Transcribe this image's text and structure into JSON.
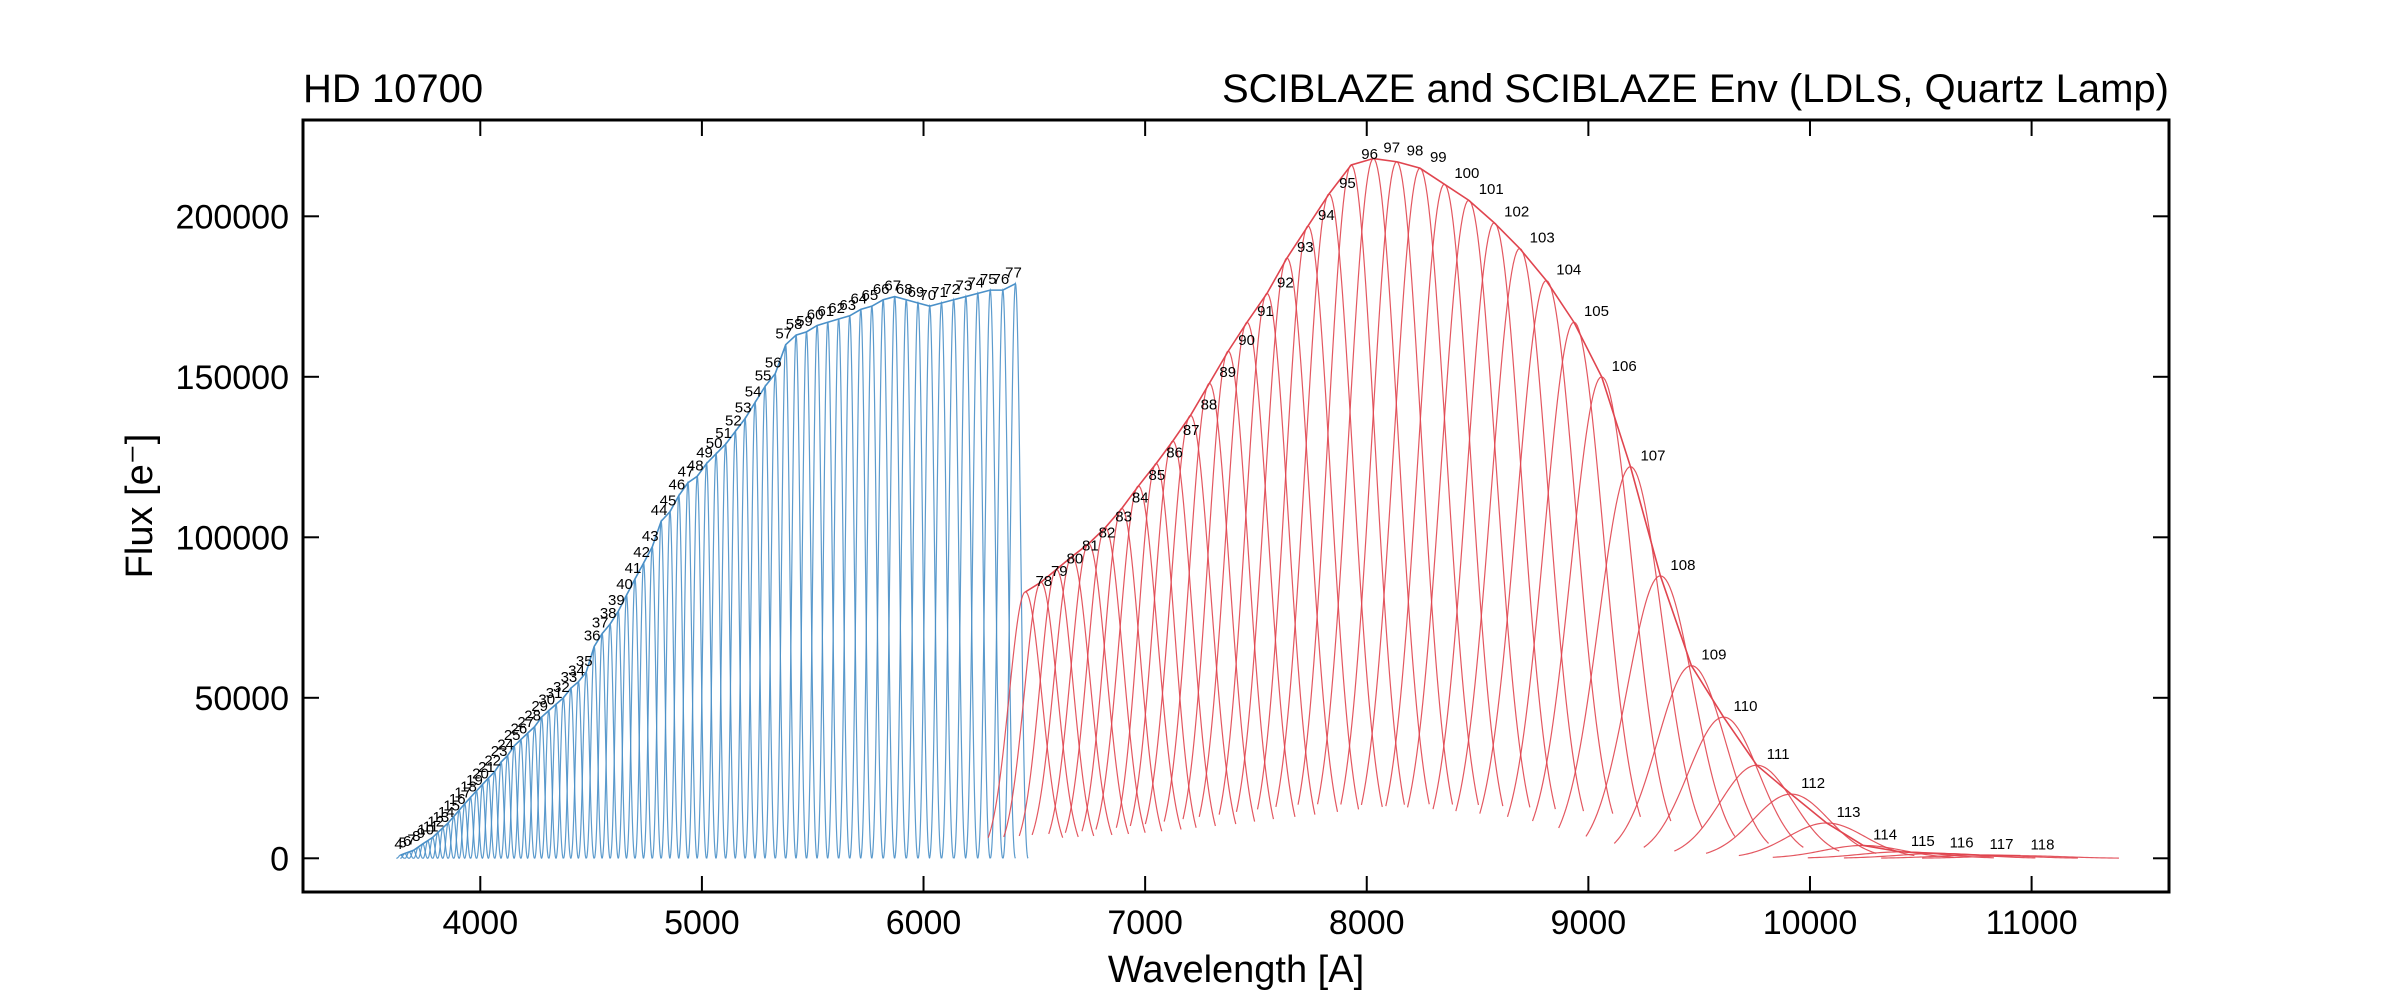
{
  "chart_data": {
    "type": "blaze",
    "title": "HD 10700",
    "subtitle": "SCIBLAZE and SCIBLAZE Env (LDLS, Quartz Lamp)",
    "x_label": "Wavelength [A]",
    "y_label": "Flux [e⁻]",
    "xlim": [
      3200,
      11620
    ],
    "ylim": [
      -10500,
      230000
    ],
    "xticks": [
      4000,
      5000,
      6000,
      7000,
      8000,
      9000,
      10000,
      11000
    ],
    "yticks": [
      0,
      50000,
      100000,
      150000,
      200000
    ],
    "series": [
      {
        "color": "#4a90c8",
        "orders": [
          4,
          5,
          6,
          7,
          8,
          9,
          10,
          11,
          12,
          13,
          14,
          15,
          16,
          17,
          18,
          19,
          20,
          21,
          22,
          23,
          24,
          25,
          26,
          27,
          28,
          29,
          30,
          31,
          32,
          33,
          34,
          35,
          36,
          37,
          38,
          39,
          40,
          41,
          42,
          43,
          44,
          45,
          46,
          47,
          48,
          49,
          50,
          51,
          52,
          53,
          54,
          55,
          56,
          57,
          58,
          59,
          60,
          61,
          62,
          63,
          64,
          65,
          66,
          67,
          68,
          69,
          70,
          71,
          72,
          73,
          74,
          75,
          76,
          77
        ],
        "x": [
          3640,
          3659,
          3679,
          3699,
          3720,
          3741,
          3763,
          3785,
          3808,
          3831,
          3855,
          3880,
          3905,
          3930,
          3956,
          3983,
          4010,
          4037,
          4065,
          4094,
          4123,
          4153,
          4183,
          4214,
          4245,
          4277,
          4309,
          4342,
          4375,
          4409,
          4443,
          4478,
          4514,
          4550,
          4586,
          4623,
          4660,
          4698,
          4737,
          4776,
          4816,
          4856,
          4896,
          4937,
          4979,
          5021,
          5064,
          5107,
          5151,
          5195,
          5240,
          5285,
          5331,
          5378,
          5425,
          5472,
          5520,
          5568,
          5617,
          5667,
          5717,
          5767,
          5818,
          5870,
          5922,
          5975,
          6028,
          6081,
          6136,
          6191,
          6245,
          6301,
          6358,
          6415
        ],
        "values": [
          1000,
          1500,
          2000,
          2500,
          3500,
          4500,
          5500,
          6500,
          8000,
          9500,
          11000,
          13000,
          15000,
          17000,
          19000,
          21000,
          23000,
          25000,
          27000,
          30000,
          32000,
          35000,
          37000,
          39000,
          41000,
          44000,
          46000,
          48000,
          50000,
          53000,
          55000,
          58000,
          66000,
          70000,
          73000,
          77000,
          82000,
          87000,
          92000,
          97000,
          105000,
          108000,
          113000,
          117000,
          119000,
          123000,
          126000,
          129000,
          133000,
          137000,
          142000,
          147000,
          151000,
          160000,
          163000,
          164000,
          166000,
          167000,
          168000,
          169000,
          171000,
          172000,
          174000,
          175000,
          174000,
          173000,
          172000,
          173000,
          174000,
          175000,
          176000,
          177000,
          177000,
          179000
        ]
      },
      {
        "color": "#e0454f",
        "orders": [
          78,
          79,
          80,
          81,
          82,
          83,
          84,
          85,
          86,
          87,
          88,
          89,
          90,
          91,
          92,
          93,
          94,
          95,
          96,
          97,
          98,
          99,
          100,
          101,
          102,
          103,
          104,
          105,
          106,
          107,
          108,
          109,
          110,
          111,
          112,
          113,
          114,
          115,
          116,
          117,
          118
        ],
        "x": [
          6460,
          6530,
          6600,
          6670,
          6745,
          6820,
          6895,
          6970,
          7050,
          7125,
          7205,
          7290,
          7375,
          7460,
          7550,
          7640,
          7735,
          7830,
          7930,
          8030,
          8135,
          8240,
          8350,
          8460,
          8575,
          8690,
          8810,
          8935,
          9060,
          9190,
          9325,
          9465,
          9610,
          9760,
          9915,
          10075,
          10240,
          10410,
          10585,
          10765,
          10950
        ],
        "values": [
          83000,
          86000,
          90000,
          94000,
          98000,
          103000,
          109000,
          116000,
          123000,
          130000,
          138000,
          148000,
          158000,
          167000,
          176000,
          187000,
          197000,
          207000,
          216000,
          218000,
          217000,
          215000,
          210000,
          205000,
          198000,
          190000,
          180000,
          167000,
          150000,
          122000,
          88000,
          60000,
          44000,
          29000,
          20000,
          11000,
          4000,
          2000,
          1500,
          1000,
          800
        ]
      }
    ]
  }
}
